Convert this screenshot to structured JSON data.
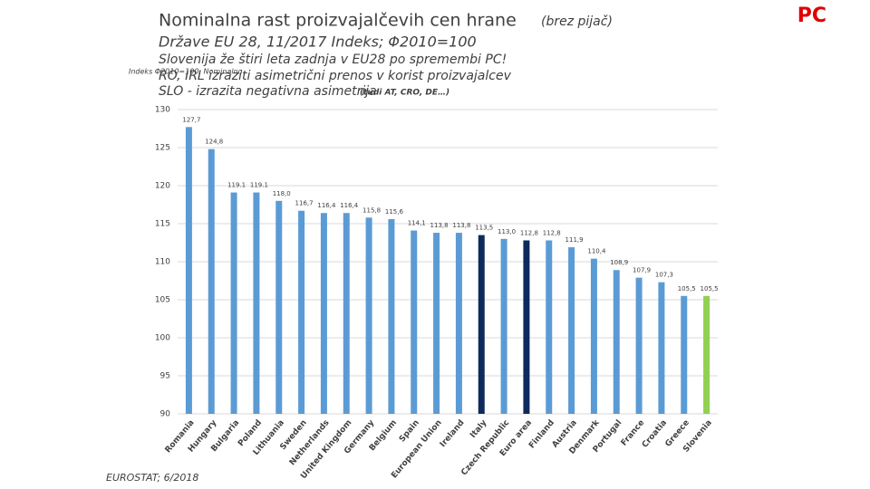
{
  "slide": {
    "title": "Nominalna rast proizvajalčevih cen hrane",
    "title_note": "(brez pijač)",
    "corner_label": "PC",
    "subtitle": "Države EU 28, 11/2017 Indeks; Φ2010=100",
    "notes": [
      "Slovenija že štiri leta zadnja v EU28 po spremembi PC!",
      "RO, IRL izraziti asimetrični prenos v korist proizvajalcev",
      "SLO - izrazita negativna asimetrija"
    ],
    "note_aside": "(tudi AT, CRO, DE…)",
    "overlay_label": "Indeks Φ2010=100, Nominalno",
    "source": "EUROSTAT; 6/2018"
  },
  "chart_data": {
    "type": "bar",
    "categories": [
      "Romania",
      "Hungary",
      "Bulgaria",
      "Poland",
      "Lithuania",
      "Sweden",
      "Netherlands",
      "United Kingdom",
      "Germany",
      "Belgium",
      "Spain",
      "European Union",
      "Ireland",
      "Italy",
      "Czech Republic",
      "Euro area",
      "Finland",
      "Austria",
      "Denmark",
      "Portugal",
      "France",
      "Croatia",
      "Greece",
      "Slovenia"
    ],
    "values": [
      127.7,
      124.8,
      119.1,
      119.1,
      118.0,
      116.7,
      116.4,
      116.4,
      115.8,
      115.6,
      114.1,
      113.8,
      113.8,
      113.5,
      113.0,
      112.8,
      112.8,
      111.9,
      110.4,
      108.9,
      107.9,
      107.3,
      105.5,
      105.5
    ],
    "value_labels": [
      "127,7",
      "124,8",
      "119.1",
      "119.1",
      "118,0",
      "116,7",
      "116,4",
      "116,4",
      "115,8",
      "115,6",
      "114,1",
      "113,8",
      "113,8",
      "113,5",
      "113,0",
      "112,8",
      "112,8",
      "111,9",
      "110,4",
      "108,9",
      "107,9",
      "107,3",
      "105,5",
      "105,5"
    ],
    "colors": [
      "#5b9bd5",
      "#5b9bd5",
      "#5b9bd5",
      "#5b9bd5",
      "#5b9bd5",
      "#5b9bd5",
      "#5b9bd5",
      "#5b9bd5",
      "#5b9bd5",
      "#5b9bd5",
      "#5b9bd5",
      "#5b9bd5",
      "#5b9bd5",
      "#0d2a5c",
      "#5b9bd5",
      "#0d2a5c",
      "#5b9bd5",
      "#5b9bd5",
      "#5b9bd5",
      "#5b9bd5",
      "#5b9bd5",
      "#5b9bd5",
      "#5b9bd5",
      "#92d050"
    ],
    "ylim": [
      90,
      130
    ],
    "yticks": [
      90,
      95,
      100,
      105,
      110,
      115,
      120,
      125,
      130
    ],
    "grid": true
  }
}
